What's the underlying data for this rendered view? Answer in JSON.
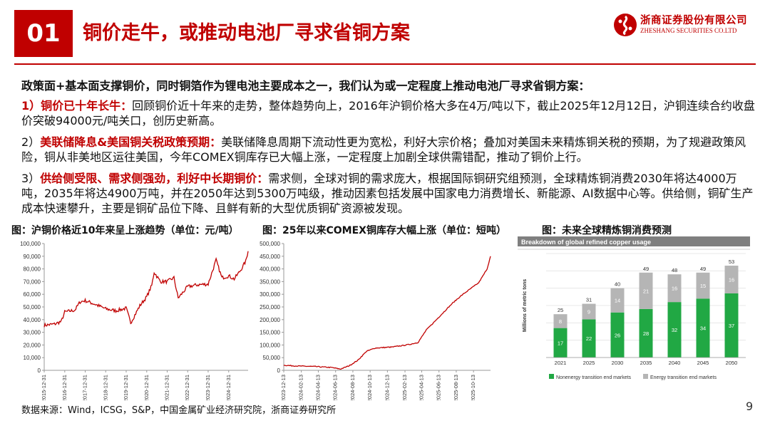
{
  "header": {
    "section_number": "01",
    "title": "铜价走牛，或推动电池厂寻求省铜方案",
    "logo_cn": "浙商证券股份有限公司",
    "logo_en": "ZHESHANG SECURITIES CO.LTD",
    "logo_icon": "zheshang-logo-icon"
  },
  "body": {
    "lead": "政策面+基本面支撑铜价，同时铜箔作为锂电池主要成本之一，我们认为或一定程度上推动电池厂寻求省铜方案：",
    "p1_label": "1）铜价已十年长牛：",
    "p1_text": "回顾铜价近十年来的走势，整体趋势向上，2016年沪铜价格大多在4万/吨以下，截止2025年12月12日，沪铜连续合约收盘价突破94000元/吨关口，创历史新高。",
    "p2_prefix": "2）",
    "p2_label": "美联储降息&美国铜关税政策预期：",
    "p2_text": "美联储降息周期下流动性更为宽松，利好大宗价格；叠加对美国未来精炼铜关税的预期，为了规避政策风险，铜从非美地区运往美国，今年COMEX铜库存已大幅上涨，一定程度上加剧全球供需错配，推动了铜价上行。",
    "p3_prefix": "3）",
    "p3_label": "供给侧受限、需求侧强劲，利好中长期铜价：",
    "p3_text": "需求侧，全球对铜的需求庞大，根据国际铜研究组预测，全球精炼铜消费2030年将达4000万吨，2035年将达4900万吨，并在2050年达到5300万吨级，推动因素包括发展中国家电力消费增长、新能源、AI数据中心等。供给侧，铜矿生产成本快速攀升，主要是铜矿品位下降、且鲜有新的大型优质铜矿资源被发现。"
  },
  "captions": {
    "chart1": "图：沪铜价格近10年来呈上涨趋势（单位：元/吨）",
    "chart2": "图：25年以来COMEX铜库存大幅上涨（单位：短吨）",
    "chart3": "图：未来全球精炼铜消费预测"
  },
  "footer": {
    "source": "数据来源：Wind，ICSG，S&P，中国金属矿业经济研究院，浙商证券研究所",
    "page": "9"
  },
  "colors": {
    "brand_red": "#c00000",
    "line_red": "#c00000",
    "bar_green": "#21a844",
    "bar_gray": "#b5b5b5",
    "chart3_header": "#7f7f7f"
  },
  "chart_data": [
    {
      "type": "line",
      "title": "",
      "ylim": [
        0,
        100000
      ],
      "yticks": [
        "0",
        "10,000",
        "20,000",
        "30,000",
        "40,000",
        "50,000",
        "60,000",
        "70,000",
        "80,000",
        "90,000",
        "100,000"
      ],
      "xticks": [
        "2015-12-31",
        "2016-12-31",
        "2017-12-31",
        "2018-12-31",
        "2019-12-31",
        "2020-12-31",
        "2021-12-31",
        "2022-12-31",
        "2023-12-31",
        "2024-12-31"
      ],
      "x": [
        "2015-12-31",
        "2016-06-30",
        "2016-10-31",
        "2016-12-31",
        "2017-06-30",
        "2017-09-30",
        "2017-12-31",
        "2018-06-30",
        "2018-12-31",
        "2019-06-30",
        "2019-12-31",
        "2020-03-20",
        "2020-08-31",
        "2020-12-31",
        "2021-03-31",
        "2021-05-12",
        "2021-08-31",
        "2021-12-31",
        "2022-04-30",
        "2022-07-15",
        "2022-12-31",
        "2023-06-30",
        "2023-12-31",
        "2024-05-20",
        "2024-08-31",
        "2024-12-31",
        "2025-04-08",
        "2025-07-31",
        "2025-10-31",
        "2025-12-12"
      ],
      "values": [
        35500,
        36500,
        38500,
        46000,
        47500,
        54000,
        55000,
        52000,
        48500,
        47000,
        49000,
        37500,
        51000,
        58000,
        67000,
        77500,
        70000,
        70000,
        73000,
        57000,
        66000,
        67500,
        68000,
        87000,
        73000,
        74500,
        72000,
        79000,
        86000,
        94000
      ]
    },
    {
      "type": "line",
      "title": "",
      "ylim": [
        0,
        500000
      ],
      "yticks": [
        "0",
        "50,000",
        "100,000",
        "150,000",
        "200,000",
        "250,000",
        "300,000",
        "350,000",
        "400,000",
        "450,000",
        "500,000"
      ],
      "xticks": [
        "2023-12-13",
        "2024-02-13",
        "2024-04-13",
        "2024-06-13",
        "2024-08-13",
        "2024-10-13",
        "2024-12-13",
        "2025-02-13",
        "2025-04-13",
        "2025-06-13",
        "2025-08-13",
        "2025-10-13"
      ],
      "x": [
        "2023-12-13",
        "2024-01-31",
        "2024-03-31",
        "2024-05-31",
        "2024-06-30",
        "2024-07-31",
        "2024-08-31",
        "2024-09-30",
        "2024-10-31",
        "2024-11-30",
        "2024-12-31",
        "2025-01-31",
        "2025-02-28",
        "2025-03-31",
        "2025-04-30",
        "2025-05-31",
        "2025-06-30",
        "2025-07-31",
        "2025-08-31",
        "2025-09-30",
        "2025-10-31",
        "2025-11-30",
        "2025-12-12"
      ],
      "values": [
        20000,
        17000,
        15000,
        11000,
        5000,
        18000,
        40000,
        75000,
        88000,
        90000,
        92000,
        97000,
        102000,
        110000,
        160000,
        195000,
        230000,
        265000,
        295000,
        320000,
        345000,
        400000,
        450000
      ]
    },
    {
      "type": "bar",
      "stacked": true,
      "title": "Breakdown of global refined copper usage",
      "ylabel": "Millions of metric tons",
      "categories": [
        "2021",
        "2025",
        "2030",
        "2035",
        "2040",
        "2045",
        "2050"
      ],
      "series": [
        {
          "name": "Nonenergy transition end markets",
          "values": [
            17,
            22,
            26,
            28,
            32,
            34,
            37
          ]
        },
        {
          "name": "Energy transition end markets",
          "values": [
            8,
            9,
            14,
            21,
            16,
            15,
            16
          ]
        }
      ],
      "totals": [
        25,
        31,
        40,
        49,
        48,
        49,
        53
      ],
      "ylim": [
        0,
        60
      ],
      "legend": "bottom"
    }
  ]
}
